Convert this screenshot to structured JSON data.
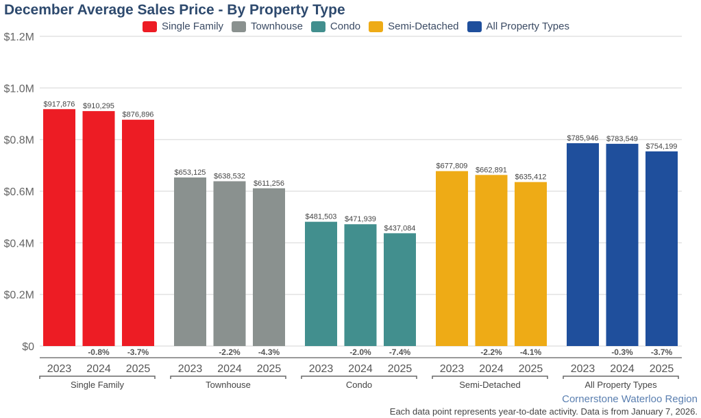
{
  "chart_data": {
    "type": "bar",
    "title": "December Average Sales Price - By Property Type",
    "ylim": [
      0,
      1200000
    ],
    "yticks": [
      {
        "v": 0,
        "label": "$0"
      },
      {
        "v": 200000,
        "label": "$0.2M"
      },
      {
        "v": 400000,
        "label": "$0.4M"
      },
      {
        "v": 600000,
        "label": "$0.6M"
      },
      {
        "v": 800000,
        "label": "$0.8M"
      },
      {
        "v": 1000000,
        "label": "$1.0M"
      },
      {
        "v": 1200000,
        "label": "$1.2M"
      }
    ],
    "categories": [
      "2023",
      "2024",
      "2025"
    ],
    "legend_position": "top-center",
    "series": [
      {
        "name": "Single Family",
        "color": "#ed1c24",
        "values": [
          917876,
          910295,
          876896
        ],
        "labels": [
          "$917,876",
          "$910,295",
          "$876,896"
        ],
        "changes": [
          "",
          "-0.8%",
          "-3.7%"
        ]
      },
      {
        "name": "Townhouse",
        "color": "#8a918f",
        "values": [
          653125,
          638532,
          611256
        ],
        "labels": [
          "$653,125",
          "$638,532",
          "$611,256"
        ],
        "changes": [
          "",
          "-2.2%",
          "-4.3%"
        ]
      },
      {
        "name": "Condo",
        "color": "#428f8e",
        "values": [
          481503,
          471939,
          437084
        ],
        "labels": [
          "$481,503",
          "$471,939",
          "$437,084"
        ],
        "changes": [
          "",
          "-2.0%",
          "-7.4%"
        ]
      },
      {
        "name": "Semi-Detached",
        "color": "#eeab16",
        "values": [
          677809,
          662891,
          635412
        ],
        "labels": [
          "$677,809",
          "$662,891",
          "$635,412"
        ],
        "changes": [
          "",
          "-2.2%",
          "-4.1%"
        ]
      },
      {
        "name": "All Property Types",
        "color": "#1f4f9c",
        "values": [
          785946,
          783549,
          754199
        ],
        "labels": [
          "$785,946",
          "$783,549",
          "$754,199"
        ],
        "changes": [
          "",
          "-0.3%",
          "-3.7%"
        ]
      }
    ]
  },
  "source": "Cornerstone Waterloo Region",
  "note": "Each data point represents year-to-date activity. Data is from January 7, 2026."
}
